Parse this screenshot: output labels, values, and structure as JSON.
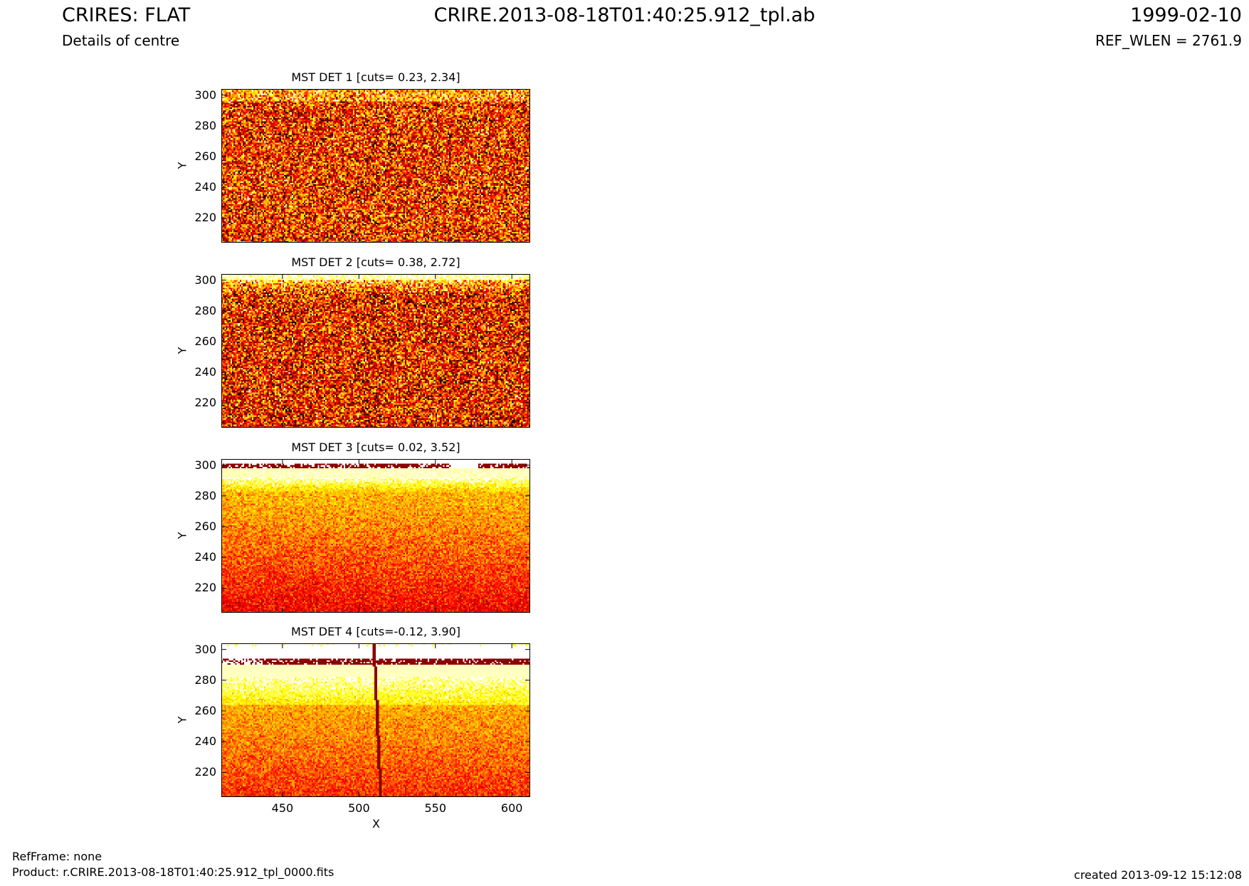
{
  "header": {
    "left_title": "CRIRES: FLAT",
    "left_subtitle": "Details of centre",
    "center_title": "CRIRE.2013-08-18T01:40:25.912_tpl.ab",
    "right_title": "1999-02-10",
    "right_subtitle": "REF_WLEN = 2761.9"
  },
  "footer": {
    "refframe": "RefFrame: none",
    "product": "Product: r.CRIRE.2013-08-18T01:40:25.912_tpl_0000.fits",
    "created": "created 2013-09-12 15:12:08"
  },
  "colors": {
    "colormap": [
      "#000000",
      "#8b0000",
      "#ff0000",
      "#ffa500",
      "#ffff00",
      "#ffffff"
    ],
    "axis": "#000000"
  },
  "chart_data": [
    {
      "type": "heatmap",
      "title": "MST DET 1 [cuts= 0.23, 2.34]",
      "xlabel": "",
      "ylabel": "Y",
      "xlim": [
        410,
        612
      ],
      "ylim": [
        204,
        304
      ],
      "yticks": [
        "220",
        "240",
        "260",
        "280",
        "300"
      ],
      "xticks": [],
      "grid": false,
      "pattern": "noisy-dark"
    },
    {
      "type": "heatmap",
      "title": "MST DET 2 [cuts= 0.38, 2.72]",
      "xlabel": "",
      "ylabel": "Y",
      "xlim": [
        410,
        612
      ],
      "ylim": [
        204,
        304
      ],
      "yticks": [
        "220",
        "240",
        "260",
        "280",
        "300"
      ],
      "xticks": [],
      "grid": false,
      "pattern": "noisy-dark-topwhite"
    },
    {
      "type": "heatmap",
      "title": "MST DET 3 [cuts= 0.02, 3.52]",
      "xlabel": "",
      "ylabel": "Y",
      "xlim": [
        410,
        612
      ],
      "ylim": [
        204,
        304
      ],
      "yticks": [
        "220",
        "240",
        "260",
        "280",
        "300"
      ],
      "xticks": [],
      "grid": false,
      "pattern": "gradient-edge300"
    },
    {
      "type": "heatmap",
      "title": "MST DET 4 [cuts=-0.12, 3.90]",
      "xlabel": "X",
      "ylabel": "Y",
      "xlim": [
        410,
        612
      ],
      "ylim": [
        204,
        304
      ],
      "yticks": [
        "220",
        "240",
        "260",
        "280",
        "300"
      ],
      "xticks": [
        "450",
        "500",
        "550",
        "600"
      ],
      "grid": false,
      "pattern": "gradient-edge292-line511"
    }
  ]
}
